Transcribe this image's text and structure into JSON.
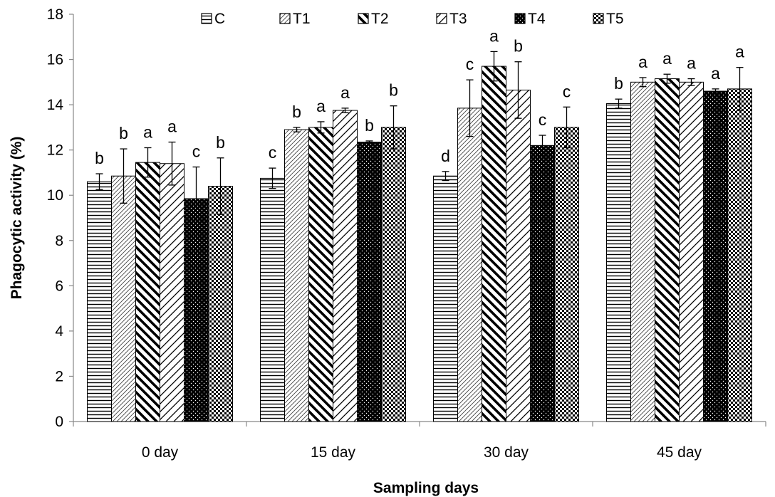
{
  "chart_data": {
    "type": "bar",
    "xlabel": "Sampling days",
    "ylabel": "Phagocytic activity (%)",
    "ylim": [
      0,
      18
    ],
    "yticks": [
      0,
      2,
      4,
      6,
      8,
      10,
      12,
      14,
      16,
      18
    ],
    "grid": false,
    "legend_position": "top",
    "categories": [
      "0 day",
      "15 day",
      "30 day",
      "45 day"
    ],
    "series": [
      {
        "name": "C",
        "pattern": "horizontal-lines",
        "values": [
          10.6,
          10.75,
          10.85,
          14.05
        ],
        "errors": [
          0.35,
          0.45,
          0.2,
          0.2
        ],
        "letters": [
          "b",
          "c",
          "d",
          "b"
        ]
      },
      {
        "name": "T1",
        "pattern": "fine-diagonal",
        "values": [
          10.85,
          12.9,
          13.85,
          15.0
        ],
        "errors": [
          1.2,
          0.1,
          1.25,
          0.2
        ],
        "letters": [
          "b",
          "b",
          "c",
          "a"
        ]
      },
      {
        "name": "T2",
        "pattern": "wide-downward-diagonal",
        "values": [
          11.45,
          13.0,
          15.7,
          15.15
        ],
        "errors": [
          0.65,
          0.25,
          0.65,
          0.2
        ],
        "letters": [
          "a",
          "a",
          "a",
          "a"
        ]
      },
      {
        "name": "T3",
        "pattern": "wide-upward-diagonal",
        "values": [
          11.4,
          13.75,
          14.65,
          15.0
        ],
        "errors": [
          0.95,
          0.1,
          1.25,
          0.15
        ],
        "letters": [
          "a",
          "a",
          "b",
          "a"
        ]
      },
      {
        "name": "T4",
        "pattern": "dotted-black",
        "values": [
          9.85,
          12.35,
          12.2,
          14.6
        ],
        "errors": [
          1.4,
          0.05,
          0.45,
          0.1
        ],
        "letters": [
          "c",
          "b",
          "c",
          "a"
        ]
      },
      {
        "name": "T5",
        "pattern": "checkerboard",
        "values": [
          10.4,
          13.0,
          13.0,
          14.7
        ],
        "errors": [
          1.25,
          0.95,
          0.9,
          0.95
        ],
        "letters": [
          "b",
          "b",
          "c",
          "a"
        ]
      }
    ]
  }
}
